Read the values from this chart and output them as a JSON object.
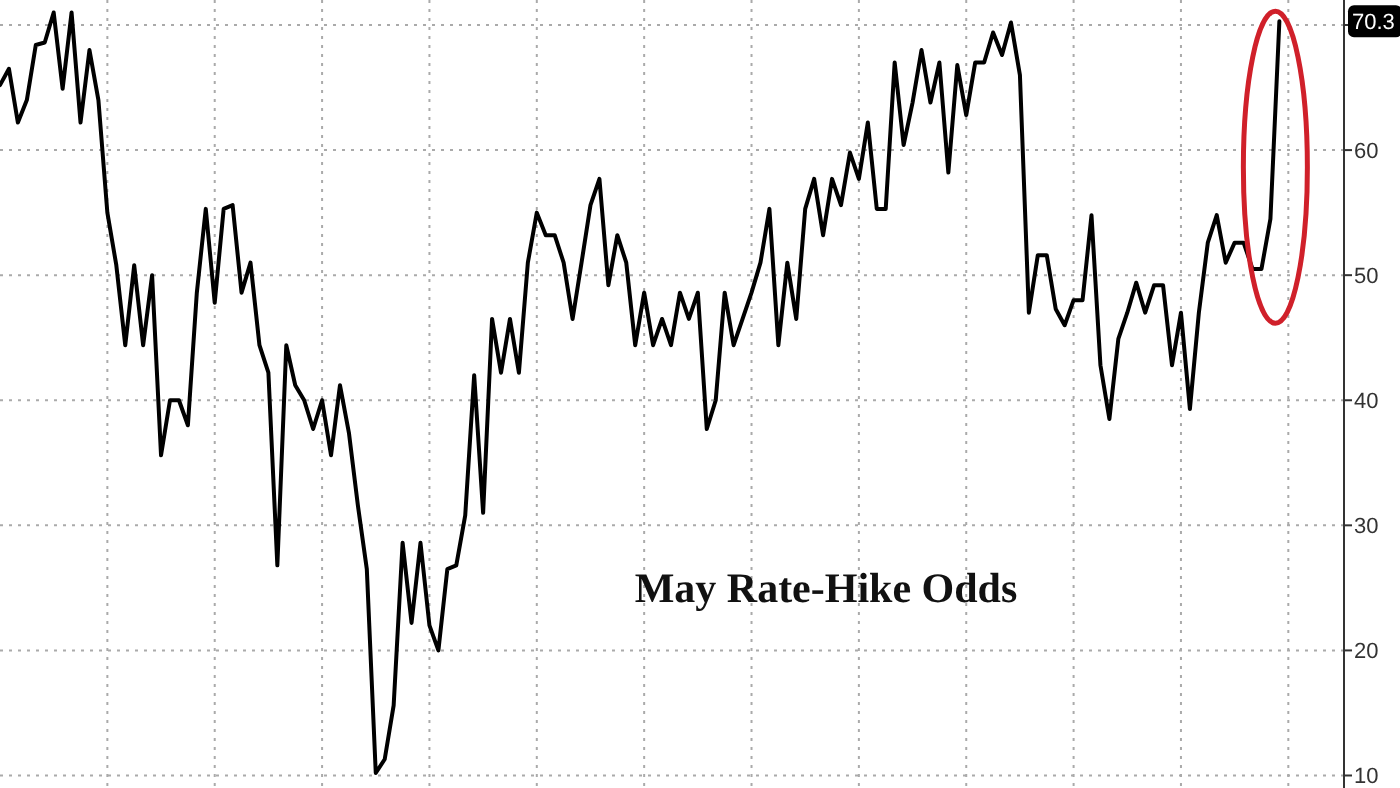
{
  "chart_data": {
    "type": "line",
    "title": "May Rate-Hike Odds",
    "categories": [
      null,
      null,
      null,
      null,
      null,
      null,
      null,
      null,
      null,
      null,
      null,
      null,
      null,
      null,
      null,
      null,
      null,
      null,
      null,
      null,
      null,
      null,
      null,
      null,
      null,
      null,
      null,
      null,
      null,
      null,
      null,
      null,
      null,
      null,
      null,
      null,
      null,
      null,
      null,
      null,
      null,
      null,
      null,
      null,
      null,
      null,
      null,
      null,
      null,
      null,
      null,
      null,
      null,
      null,
      null,
      null,
      null,
      null,
      null,
      null,
      null,
      null,
      null,
      null,
      null,
      null,
      null,
      null,
      null,
      null,
      null,
      null,
      null,
      null,
      null,
      null,
      null,
      null,
      null,
      null,
      null,
      null,
      null,
      null,
      null,
      null,
      null,
      null,
      null,
      null,
      null,
      null,
      null,
      null,
      null,
      null,
      null,
      null,
      null,
      null,
      null,
      null,
      null,
      null,
      null,
      null,
      null,
      null,
      null,
      null,
      null,
      null,
      null,
      null,
      null,
      null,
      null,
      null,
      null,
      null,
      null,
      null,
      null,
      null,
      null,
      null,
      null,
      null,
      null,
      null,
      null,
      null,
      null,
      null,
      null,
      null,
      null,
      null,
      null,
      null,
      null,
      null,
      null,
      null,
      null,
      null,
      null,
      null,
      null,
      null,
      null
    ],
    "series": [
      {
        "color": "#000000",
        "values": [
          65.2,
          66.5,
          62.2,
          64,
          68.4,
          68.6,
          71,
          64.9,
          71,
          62.2,
          68,
          64,
          55,
          50.8,
          44.4,
          50.8,
          44.4,
          50,
          35.6,
          40,
          40,
          38,
          48.6,
          55.3,
          47.8,
          55.3,
          55.6,
          48.6,
          51,
          44.4,
          42.2,
          26.8,
          44.4,
          41.2,
          40,
          37.7,
          40,
          35.6,
          41.2,
          37.4,
          31.6,
          26.5,
          10.2,
          11.3,
          15.6,
          28.6,
          22.2,
          28.6,
          22,
          20,
          26.5,
          26.8,
          30.8,
          42,
          31,
          46.5,
          42.2,
          46.5,
          42.2,
          51,
          55,
          53.2,
          53.2,
          51,
          46.5,
          51,
          55.6,
          57.7,
          49.2,
          53.2,
          51,
          44.4,
          48.6,
          44.4,
          46.5,
          44.4,
          48.6,
          46.5,
          48.6,
          37.7,
          40,
          48.6,
          44.4,
          46.5,
          48.6,
          51,
          55.3,
          44.4,
          51,
          46.5,
          55.3,
          57.7,
          53.2,
          57.7,
          55.6,
          59.8,
          57.7,
          62.2,
          55.3,
          55.3,
          67,
          60.4,
          63.8,
          68,
          63.8,
          67,
          58.2,
          66.8,
          62.8,
          67,
          67,
          69.4,
          67.6,
          70.2,
          66,
          47,
          51.6,
          51.6,
          47.3,
          46,
          48,
          48,
          54.8,
          42.8,
          38.5,
          44.9,
          47,
          49.4,
          47,
          49.2,
          49.2,
          42.8,
          47,
          39.3,
          47,
          52.6,
          54.8,
          51,
          52.6,
          52.6,
          50.5,
          50.5,
          54.5,
          70.3,
          null,
          null,
          null,
          null,
          null,
          null,
          null
        ]
      }
    ],
    "ylim": [
      9,
      72
    ],
    "yticks": [
      10,
      20,
      30,
      40,
      50,
      60,
      {
        "value": 70,
        "label": null
      }
    ],
    "tick_labels": "y",
    "grid": true,
    "marker": "none",
    "line_style": "solid",
    "annotations": [
      {
        "text": "70.3",
        "y": 70.3
      }
    ]
  }
}
